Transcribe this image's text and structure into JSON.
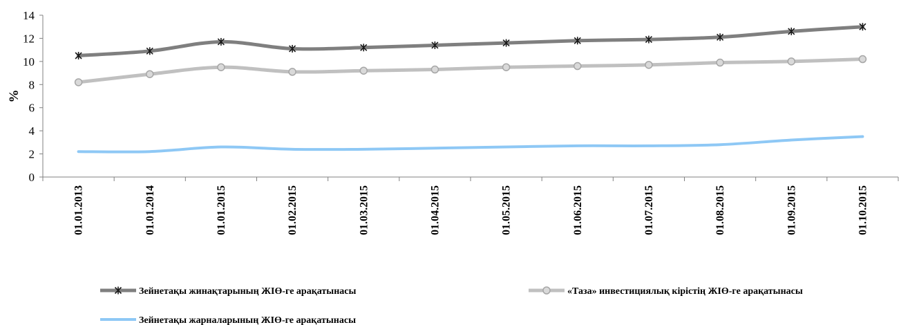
{
  "chart_data": {
    "type": "line",
    "categories": [
      "01.01.2013",
      "01.01.2014",
      "01.01.2015",
      "01.02.2015",
      "01.03.2015",
      "01.04.2015",
      "01.05.2015",
      "01.06.2015",
      "01.07.2015",
      "01.08.2015",
      "01.09.2015",
      "01.10.2015"
    ],
    "ylabel": "%",
    "xlabel": "",
    "title": "",
    "ylim": [
      0,
      14
    ],
    "yticks": [
      0,
      2,
      4,
      6,
      8,
      10,
      12,
      14
    ],
    "grid": false,
    "legend_position": "bottom",
    "series": [
      {
        "name": "Зейнетақы жинақтарының ЖІӨ-ге арақатынасы",
        "values": [
          10.5,
          10.9,
          11.7,
          11.1,
          11.2,
          11.4,
          11.6,
          11.8,
          11.9,
          12.1,
          12.6,
          13.0
        ],
        "color": "#7f7f7f",
        "marker": "star"
      },
      {
        "name": "«Таза» инвестициялық кірістің ЖІӨ-ге арақатынасы",
        "values": [
          8.2,
          8.9,
          9.5,
          9.1,
          9.2,
          9.3,
          9.5,
          9.6,
          9.7,
          9.9,
          10.0,
          10.2
        ],
        "color": "#c0c0c0",
        "marker": "circle"
      },
      {
        "name": "Зейнетақы жарналарының ЖІӨ-ге арақатынасы",
        "values": [
          2.2,
          2.2,
          2.6,
          2.4,
          2.4,
          2.5,
          2.6,
          2.7,
          2.7,
          2.8,
          3.2,
          3.5
        ],
        "color": "#8ec8f5",
        "marker": "none"
      }
    ]
  }
}
